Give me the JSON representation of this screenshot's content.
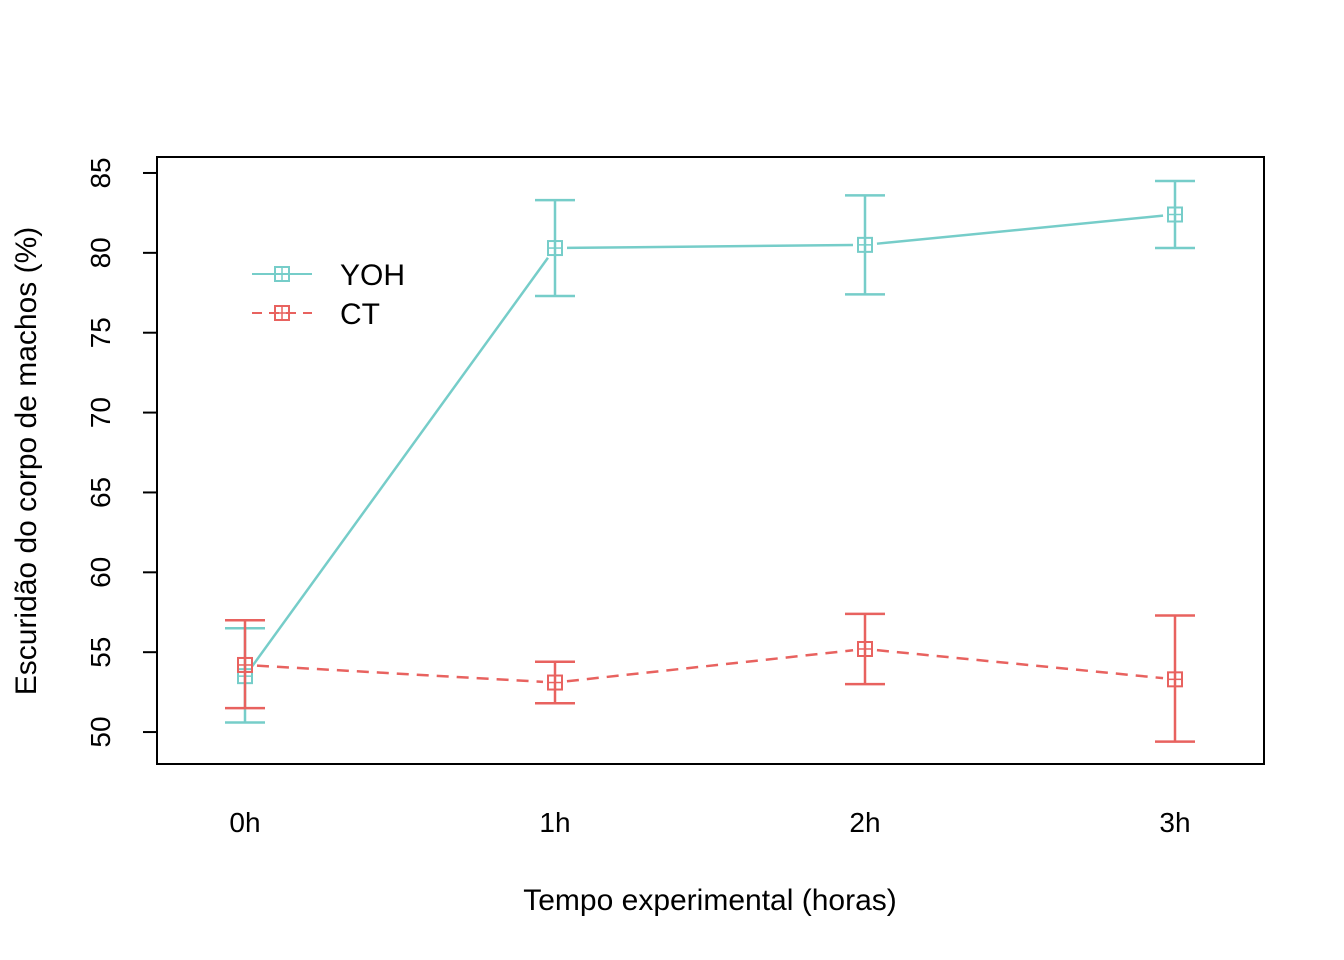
{
  "chart_data": {
    "type": "line",
    "title": "",
    "xlabel": "Tempo experimental (horas)",
    "ylabel": "Escuridão do corpo de machos (%)",
    "categories": [
      "0h",
      "1h",
      "2h",
      "3h"
    ],
    "ylim": [
      48,
      86
    ],
    "yticks": [
      50,
      55,
      60,
      65,
      70,
      75,
      80,
      85
    ],
    "grid": false,
    "legend_position": "top-left",
    "series": [
      {
        "name": "YOH",
        "color": "#76CDC9",
        "line_style": "solid",
        "marker": "square-plus",
        "values": [
          53.5,
          80.3,
          80.5,
          82.4
        ],
        "error_low": [
          50.6,
          77.3,
          77.4,
          80.3
        ],
        "error_high": [
          56.5,
          83.3,
          83.6,
          84.5
        ]
      },
      {
        "name": "CT",
        "color": "#E8625F",
        "line_style": "dashed",
        "marker": "square-plus",
        "values": [
          54.2,
          53.1,
          55.2,
          53.3
        ],
        "error_low": [
          51.5,
          51.8,
          53.0,
          49.4
        ],
        "error_high": [
          57.0,
          54.4,
          57.4,
          57.3
        ]
      }
    ]
  }
}
